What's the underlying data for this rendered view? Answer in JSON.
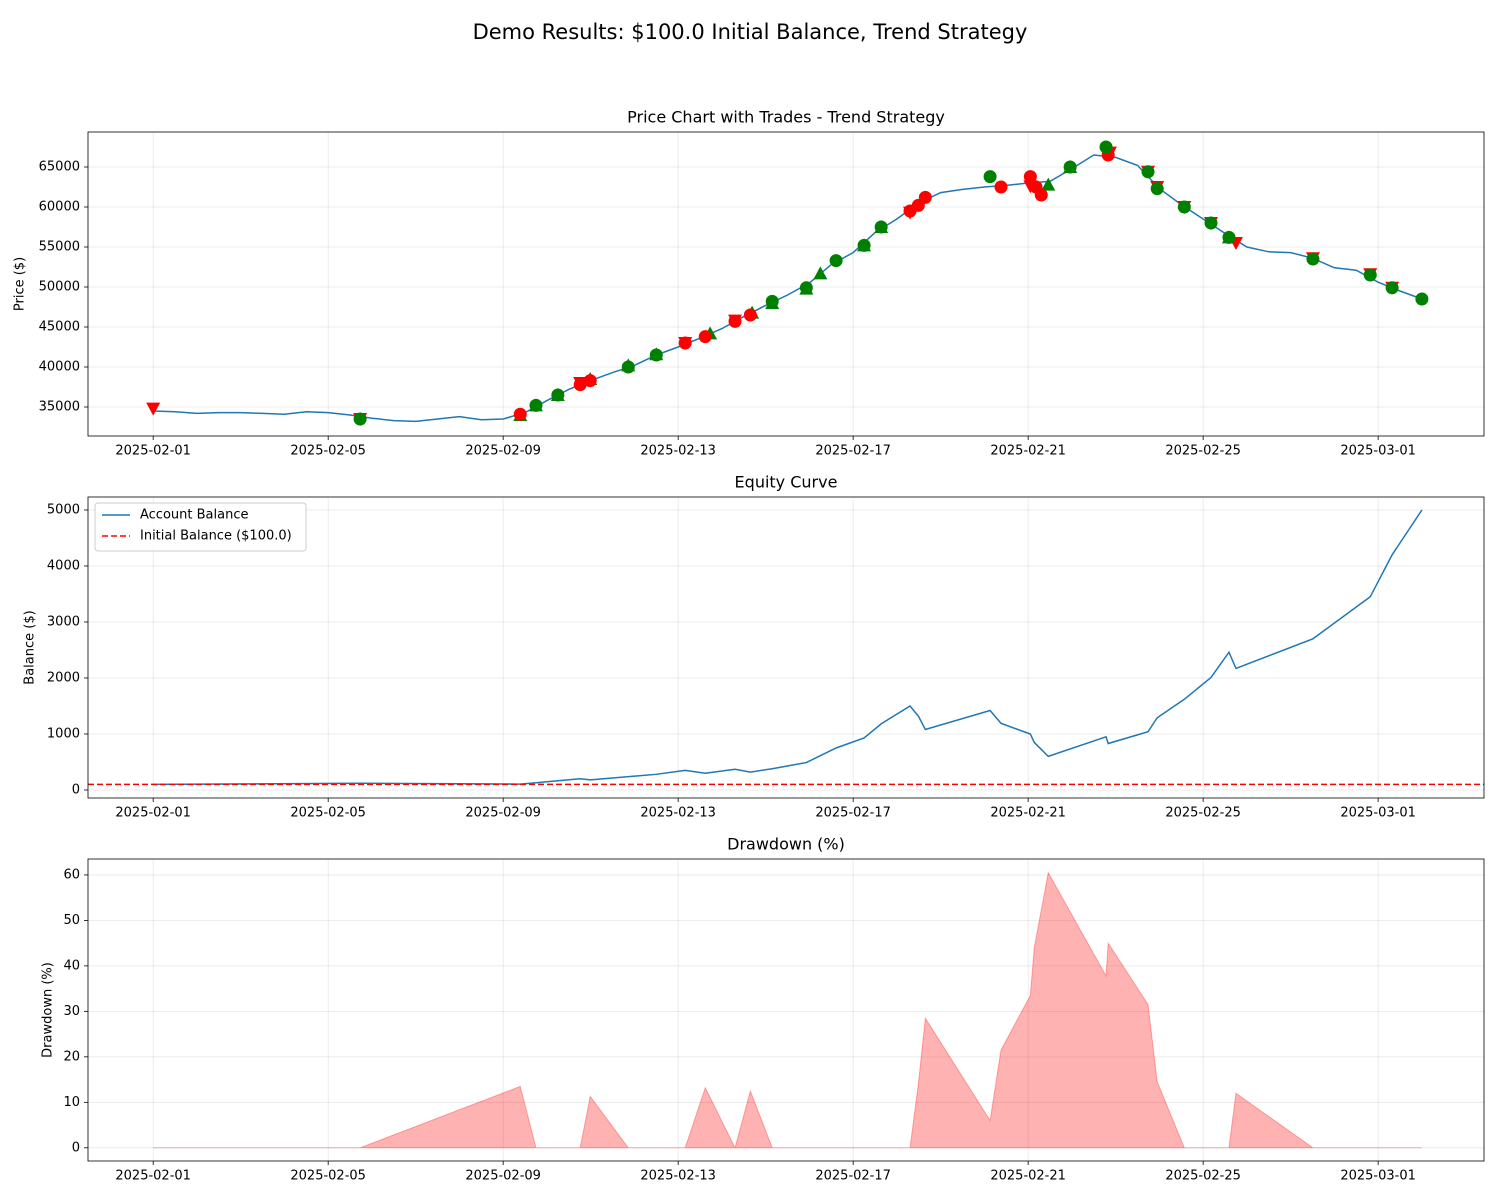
{
  "title": "Demo Results: $100.0 Initial Balance, Trend Strategy",
  "chart_data": [
    {
      "type": "line",
      "title": "Price Chart with Trades - Trend Strategy",
      "y_label": "Price ($)",
      "grid": true,
      "xlim": [
        20118.51,
        20150.42
      ],
      "ylim": [
        31375,
        69375
      ],
      "xticks": [
        {
          "value": 20120,
          "label": "2025-02-01"
        },
        {
          "value": 20124,
          "label": "2025-02-05"
        },
        {
          "value": 20128,
          "label": "2025-02-09"
        },
        {
          "value": 20132,
          "label": "2025-02-13"
        },
        {
          "value": 20136,
          "label": "2025-02-17"
        },
        {
          "value": 20140,
          "label": "2025-02-21"
        },
        {
          "value": 20144,
          "label": "2025-02-25"
        },
        {
          "value": 20148,
          "label": "2025-03-01"
        }
      ],
      "yticks": [
        35000,
        40000,
        45000,
        50000,
        55000,
        60000,
        65000
      ],
      "series": [
        {
          "color": "#1f77b4",
          "x": [
            20120,
            20120.5,
            20121,
            20121.5,
            20122,
            20122.5,
            20123,
            20123.5,
            20124,
            20124.5,
            20125,
            20125.5,
            20126,
            20126.5,
            20127,
            20127.5,
            20128,
            20128.5,
            20129,
            20129.5,
            20130,
            20130.5,
            20131,
            20131.5,
            20132,
            20132.5,
            20133,
            20133.5,
            20134,
            20134.5,
            20135,
            20135.5,
            20136,
            20136.5,
            20137,
            20137.5,
            20138,
            20138.5,
            20139,
            20139.5,
            20140,
            20140.5,
            20141,
            20141.5,
            20142,
            20142.5,
            20143,
            20143.5,
            20144,
            20144.5,
            20145,
            20145.5,
            20146,
            20146.5,
            20147,
            20147.5,
            20148,
            20148.5,
            20149
          ],
          "values": [
            34500,
            34400,
            34200,
            34300,
            34300,
            34200,
            34100,
            34400,
            34300,
            34000,
            33600,
            33300,
            33200,
            33500,
            33800,
            33400,
            33500,
            34300,
            35800,
            37200,
            38300,
            39300,
            40200,
            41500,
            42500,
            43600,
            44800,
            46300,
            47700,
            49000,
            50500,
            52800,
            54300,
            56800,
            58500,
            60500,
            61800,
            62200,
            62500,
            62700,
            63000,
            63200,
            64800,
            66500,
            66200,
            65200,
            62300,
            60300,
            58500,
            56700,
            55000,
            54400,
            54300,
            53600,
            52400,
            52100,
            50600,
            49500,
            48500
          ]
        }
      ],
      "markers": [
        {
          "marker": "^",
          "color": "green",
          "x": [
            20128.39,
            20128.75,
            20129.25,
            20129.99,
            20130.86,
            20131.5,
            20132.73,
            20133.69,
            20134.15,
            20134.93,
            20135.25,
            20136.25,
            20136.64,
            20140.46,
            20140.96,
            20144.59
          ],
          "values": [
            34000,
            35200,
            36500,
            38500,
            40200,
            41600,
            44200,
            46800,
            48000,
            49800,
            51700,
            55200,
            57500,
            62800,
            65000,
            56200
          ]
        },
        {
          "marker": "v",
          "color": "red",
          "x": [
            20120,
            20124.73,
            20129.76,
            20132.16,
            20133.3,
            20137.3,
            20140.05,
            20141.87,
            20142.74,
            20142.95,
            20143.57,
            20144.18,
            20144.75,
            20146.51,
            20147.82,
            20148.32
          ],
          "values": [
            34800,
            33500,
            38000,
            43000,
            45800,
            59300,
            62600,
            66800,
            64400,
            62500,
            60000,
            58000,
            55500,
            53600,
            51600,
            49900
          ]
        },
        {
          "marker": "o",
          "color": "red",
          "x": [
            20128.39,
            20129.76,
            20129.99,
            20132.16,
            20132.62,
            20133.3,
            20133.65,
            20137.3,
            20137.49,
            20137.65,
            20139.38,
            20140.05,
            20140.18,
            20140.3,
            20141.83
          ],
          "values": [
            34100,
            37800,
            38300,
            43000,
            43800,
            45700,
            46500,
            59500,
            60200,
            61200,
            62500,
            63800,
            62500,
            61500,
            66500
          ]
        },
        {
          "marker": "o",
          "color": "green",
          "x": [
            20124.73,
            20128.75,
            20129.25,
            20130.86,
            20131.5,
            20134.15,
            20134.93,
            20135.61,
            20136.25,
            20136.64,
            20139.13,
            20140.96,
            20141.78,
            20142.74,
            20142.95,
            20143.57,
            20144.18,
            20144.59,
            20146.51,
            20147.82,
            20148.32,
            20149
          ],
          "values": [
            33500,
            35200,
            36500,
            40000,
            41500,
            48200,
            49900,
            53300,
            55200,
            57500,
            63800,
            65000,
            67500,
            64400,
            62300,
            60000,
            58000,
            56200,
            53500,
            51500,
            49900,
            48500
          ]
        }
      ]
    },
    {
      "type": "line",
      "title": "Equity Curve",
      "y_label": "Balance ($)",
      "grid": true,
      "legend": "upper left",
      "xlim": [
        20118.51,
        20150.42
      ],
      "ylim": [
        -143,
        5232
      ],
      "xticks": [
        {
          "value": 20120,
          "label": "2025-02-01"
        },
        {
          "value": 20124,
          "label": "2025-02-05"
        },
        {
          "value": 20128,
          "label": "2025-02-09"
        },
        {
          "value": 20132,
          "label": "2025-02-13"
        },
        {
          "value": 20136,
          "label": "2025-02-17"
        },
        {
          "value": 20140,
          "label": "2025-02-21"
        },
        {
          "value": 20144,
          "label": "2025-02-25"
        },
        {
          "value": 20148,
          "label": "2025-03-01"
        }
      ],
      "yticks": [
        0,
        1000,
        2000,
        3000,
        4000,
        5000
      ],
      "series": [
        {
          "name": "Account Balance",
          "color": "#1f77b4",
          "x": [
            20120,
            20124.73,
            20128.39,
            20128.75,
            20129.76,
            20129.99,
            20131.5,
            20132.16,
            20132.62,
            20133.3,
            20133.65,
            20134.15,
            20134.93,
            20135.61,
            20136.25,
            20136.64,
            20137.3,
            20137.49,
            20137.65,
            20139.13,
            20139.38,
            20140.05,
            20140.14,
            20140.46,
            20141.78,
            20141.83,
            20142.74,
            20142.95,
            20143.57,
            20144.18,
            20144.59,
            20144.75,
            20146.51,
            20147.82,
            20148.32,
            20149
          ],
          "values": [
            100,
            120,
            105,
            130,
            200,
            180,
            280,
            350,
            300,
            370,
            320,
            380,
            490,
            750,
            930,
            1180,
            1500,
            1320,
            1080,
            1420,
            1190,
            1000,
            850,
            600,
            950,
            830,
            1040,
            1290,
            1620,
            2010,
            2460,
            2170,
            2700,
            3450,
            4200,
            5000
          ]
        },
        {
          "name": "Initial Balance ($100.0)",
          "color": "red",
          "linestyle": "--",
          "hline": 100
        }
      ]
    },
    {
      "type": "area",
      "title": "Drawdown (%)",
      "y_label": "Drawdown (%)",
      "grid": true,
      "color": "red",
      "alpha": 0.3,
      "xlim": [
        20118.51,
        20150.42
      ],
      "ylim": [
        -2.9,
        63.5
      ],
      "xticks": [
        {
          "value": 20120,
          "label": "2025-02-01"
        },
        {
          "value": 20124,
          "label": "2025-02-05"
        },
        {
          "value": 20128,
          "label": "2025-02-09"
        },
        {
          "value": 20132,
          "label": "2025-02-13"
        },
        {
          "value": 20136,
          "label": "2025-02-17"
        },
        {
          "value": 20140,
          "label": "2025-02-21"
        },
        {
          "value": 20144,
          "label": "2025-02-25"
        },
        {
          "value": 20148,
          "label": "2025-03-01"
        }
      ],
      "yticks": [
        0,
        10,
        20,
        30,
        40,
        50,
        60
      ],
      "x": [
        20120,
        20124.73,
        20128.39,
        20128.75,
        20129.76,
        20129.99,
        20130.86,
        20132.16,
        20132.62,
        20133.3,
        20133.65,
        20134.15,
        20137.3,
        20137.49,
        20137.65,
        20139.13,
        20139.38,
        20140.05,
        20140.14,
        20140.46,
        20141.78,
        20141.83,
        20142.74,
        20142.95,
        20143.57,
        20144.59,
        20144.75,
        20146.51,
        20149
      ],
      "values": [
        0,
        0,
        13.5,
        0,
        0,
        11.3,
        0,
        0,
        13.2,
        0,
        12.5,
        0,
        0,
        14,
        28.5,
        6,
        21.5,
        33.5,
        44,
        60.5,
        37.8,
        45,
        31.5,
        14.5,
        0,
        0,
        12,
        0,
        0
      ]
    }
  ]
}
